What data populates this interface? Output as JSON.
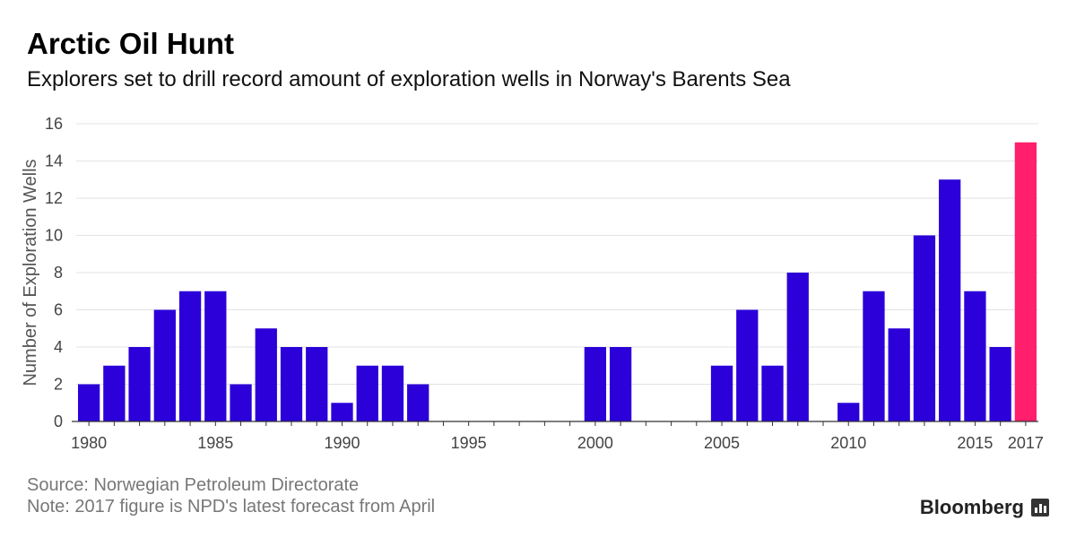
{
  "header": {
    "title": "Arctic Oil Hunt",
    "subtitle": "Explorers set to drill record amount of exploration wells in Norway's Barents Sea"
  },
  "footer": {
    "source": "Source: Norwegian Petroleum Directorate",
    "note": "Note: 2017 figure is NPD's latest forecast from April",
    "brand": "Bloomberg",
    "brand_icon": "bar-chart-icon"
  },
  "chart_data": {
    "type": "bar",
    "title": "Arctic Oil Hunt",
    "subtitle": "Explorers set to drill record amount of exploration wells in Norway's Barents Sea",
    "xlabel": "",
    "ylabel": "Number of Exploration Wells",
    "ylim": [
      0,
      16
    ],
    "yticks": [
      0,
      2,
      4,
      6,
      8,
      10,
      12,
      14,
      16
    ],
    "xticks": [
      "1980",
      "1985",
      "1990",
      "1995",
      "2000",
      "2005",
      "2010",
      "2015",
      "2017"
    ],
    "grid": true,
    "categories": [
      1980,
      1981,
      1982,
      1983,
      1984,
      1985,
      1986,
      1987,
      1988,
      1989,
      1990,
      1991,
      1992,
      1993,
      1994,
      1995,
      1996,
      1997,
      1998,
      1999,
      2000,
      2001,
      2002,
      2003,
      2004,
      2005,
      2006,
      2007,
      2008,
      2009,
      2010,
      2011,
      2012,
      2013,
      2014,
      2015,
      2016,
      2017
    ],
    "values": [
      2,
      3,
      4,
      6,
      7,
      7,
      2,
      5,
      4,
      4,
      1,
      3,
      3,
      2,
      0,
      0,
      0,
      0,
      0,
      0,
      4,
      4,
      0,
      0,
      0,
      3,
      6,
      3,
      8,
      0,
      1,
      7,
      5,
      10,
      13,
      7,
      4,
      15
    ],
    "colors": {
      "actual": "#2b00d9",
      "forecast": "#ff1f6d"
    },
    "highlight": {
      "category": 2017,
      "label": "forecast"
    }
  }
}
